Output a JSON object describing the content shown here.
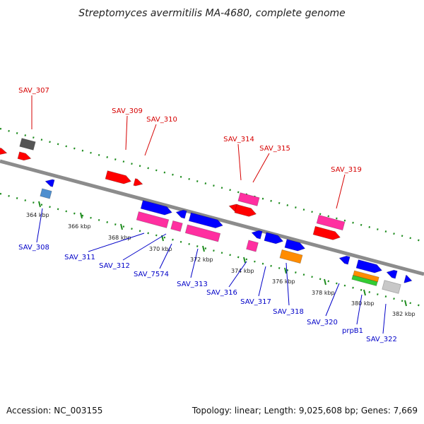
{
  "title": "Streptomyces avermitilis MA-4680, complete genome",
  "footer": {
    "accession": "Accession: NC_003155",
    "summary": "Topology: linear; Length: 9,025,608 bp; Genes: 7,669"
  },
  "colors": {
    "forward_label": "#d60000",
    "reverse_label": "#0000c8",
    "backbone": "#8c8c8c",
    "guide_dots": "#1e8c1e",
    "gene_red": "#ff0000",
    "gene_blue": "#0000ff",
    "gene_pink": "#ff2fa0",
    "gene_grey": "#555555",
    "gene_orange": "#ff8c00",
    "gene_green": "#33cc33",
    "gene_lightgrey": "#c8c8c8",
    "gene_steelblue": "#4f8fcf"
  },
  "ticks": [
    "364 kbp",
    "366 kbp",
    "368 kbp",
    "370 kbp",
    "372 kbp",
    "374 kbp",
    "376 kbp",
    "378 kbp",
    "380 kbp",
    "382 kbp"
  ],
  "labels": {
    "forward": [
      "SAV_307",
      "SAV_309",
      "SAV_310",
      "SAV_314",
      "SAV_315",
      "SAV_319"
    ],
    "reverse": [
      "SAV_308",
      "SAV_311",
      "SAV_312",
      "SAV_7574",
      "SAV_313",
      "SAV_316",
      "SAV_317",
      "SAV_318",
      "SAV_320",
      "prpB1",
      "SAV_322"
    ]
  }
}
